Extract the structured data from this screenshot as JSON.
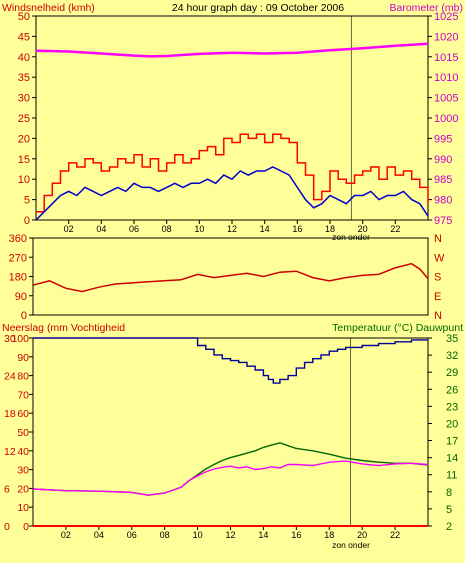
{
  "colors": {
    "background": "#ffff99",
    "frame": "#000000",
    "wind_gust": "#ff0000",
    "wind_avg": "#0000cc",
    "barometer": "#ff00ff",
    "wind_direction": "#cc0000",
    "rain": "#ff0000",
    "humidity": "#000099",
    "temperature": "#006600",
    "dewpoint": "#ff00ff",
    "label_red": "#cc0000",
    "label_magenta": "#cc00cc",
    "label_green": "#006600"
  },
  "chart_data": [
    {
      "type": "line",
      "title": "24 hour graph day : 09 October 2006",
      "ylabel_left": "Windsnelheid (kmh)",
      "ylabel_right": "Barometer (mb)",
      "x_ticks": [
        "02",
        "04",
        "06",
        "08",
        "10",
        "12",
        "14",
        "16",
        "18",
        "20",
        "22"
      ],
      "x_annotation": "zon onder",
      "left_axis": {
        "range": [
          0,
          50
        ],
        "ticks": [
          "0",
          "5",
          "10",
          "15",
          "20",
          "25",
          "30",
          "35",
          "40",
          "45",
          "50"
        ]
      },
      "right_axis": {
        "range": [
          975,
          1025
        ],
        "ticks": [
          "975",
          "980",
          "985",
          "990",
          "995",
          "1000",
          "1005",
          "1010",
          "1015",
          "1020",
          "1025"
        ]
      },
      "series": [
        {
          "key": "gust",
          "axis": "left",
          "style": "step",
          "x": [
            0,
            0.5,
            1,
            1.5,
            2,
            2.5,
            3,
            3.5,
            4,
            4.5,
            5,
            5.5,
            6,
            6.5,
            7,
            7.5,
            8,
            8.5,
            9,
            9.5,
            10,
            10.5,
            11,
            11.5,
            12,
            12.5,
            13,
            13.5,
            14,
            14.5,
            15,
            15.5,
            16,
            16.5,
            17,
            17.5,
            18,
            18.5,
            19,
            19.5,
            20,
            20.5,
            21,
            21.5,
            22,
            22.5,
            23,
            23.5,
            24
          ],
          "y": [
            2,
            6,
            9,
            12,
            14,
            13,
            15,
            14,
            12,
            13,
            15,
            14,
            16,
            13,
            15,
            12,
            14,
            16,
            14,
            15,
            17,
            18,
            16,
            20,
            19,
            21,
            20,
            21,
            19,
            21,
            20,
            19,
            14,
            11,
            5,
            7,
            12,
            10,
            9,
            11,
            12,
            13,
            10,
            13,
            11,
            12,
            10,
            8,
            4
          ]
        },
        {
          "key": "avg",
          "axis": "left",
          "style": "line",
          "x": [
            0,
            0.5,
            1,
            1.5,
            2,
            2.5,
            3,
            3.5,
            4,
            4.5,
            5,
            5.5,
            6,
            6.5,
            7,
            7.5,
            8,
            8.5,
            9,
            9.5,
            10,
            10.5,
            11,
            11.5,
            12,
            12.5,
            13,
            13.5,
            14,
            14.5,
            15,
            15.5,
            16,
            16.5,
            17,
            17.5,
            18,
            18.5,
            19,
            19.5,
            20,
            20.5,
            21,
            21.5,
            22,
            22.5,
            23,
            23.5,
            24
          ],
          "y": [
            0,
            2,
            4,
            6,
            7,
            6,
            8,
            7,
            6,
            7,
            8,
            7,
            9,
            8,
            8,
            7,
            8,
            9,
            8,
            9,
            9,
            10,
            9,
            11,
            10,
            12,
            11,
            12,
            12,
            13,
            12,
            11,
            8,
            5,
            3,
            4,
            6,
            5,
            4,
            6,
            6,
            7,
            5,
            6,
            6,
            7,
            5,
            4,
            1
          ]
        },
        {
          "key": "barometer",
          "axis": "right",
          "style": "line",
          "x": [
            0,
            2,
            4,
            6,
            7,
            8,
            10,
            12,
            14,
            16,
            18,
            20,
            22,
            24
          ],
          "y": [
            1016.5,
            1016.3,
            1015.8,
            1015.3,
            1015.1,
            1015.2,
            1015.7,
            1016,
            1015.8,
            1016,
            1016.6,
            1017.1,
            1017.7,
            1018.2
          ]
        }
      ]
    },
    {
      "type": "line",
      "title": "",
      "ylabel_left": "",
      "ylabel_right": "",
      "x_ticks": [],
      "left_axis": {
        "range": [
          0,
          360
        ],
        "ticks": [
          "0",
          "90",
          "180",
          "270",
          "360"
        ]
      },
      "right_axis": {
        "range": [
          0,
          360
        ],
        "ticks": [
          "N",
          "E",
          "S",
          "W",
          "N"
        ]
      },
      "series": [
        {
          "key": "direction",
          "axis": "left",
          "style": "line",
          "x": [
            0,
            1,
            2,
            3,
            4,
            5,
            6,
            7,
            8,
            9,
            10,
            11,
            12,
            13,
            14,
            15,
            16,
            17,
            18,
            19,
            20,
            21,
            22,
            23,
            23.5,
            24
          ],
          "y": [
            140,
            160,
            125,
            110,
            130,
            145,
            150,
            155,
            160,
            165,
            190,
            175,
            185,
            195,
            180,
            200,
            205,
            175,
            160,
            175,
            185,
            190,
            220,
            240,
            215,
            170
          ]
        }
      ]
    },
    {
      "type": "line",
      "title": "",
      "ylabel_left": "Neerslag (mm Vochtigheid",
      "ylabel_right": "Temperatuur (°C) Dauwpunt",
      "x_ticks": [
        "02",
        "04",
        "06",
        "08",
        "10",
        "12",
        "14",
        "16",
        "18",
        "20",
        "22"
      ],
      "x_annotation": "zon onder",
      "left_axis": {
        "range": [
          0,
          100
        ],
        "ticks": [
          "0",
          "6",
          "12",
          "18",
          "24",
          "30"
        ],
        "humidity_ticks": [
          "0",
          "10",
          "20",
          "30",
          "40",
          "50",
          "60",
          "70",
          "80",
          "90",
          "100"
        ]
      },
      "right_axis": {
        "range": [
          2,
          35
        ],
        "ticks": [
          "2",
          "5",
          "8",
          "11",
          "14",
          "17",
          "20",
          "23",
          "26",
          "29",
          "32",
          "35"
        ]
      },
      "series": [
        {
          "key": "humidity",
          "axis": "left",
          "style": "step",
          "x": [
            0,
            9.5,
            10,
            10.5,
            11,
            11.5,
            12,
            12.5,
            13,
            13.5,
            14,
            14.3,
            14.6,
            15,
            15.5,
            16,
            16.5,
            17,
            17.5,
            18,
            18.5,
            19,
            19.5,
            20,
            20.5,
            21,
            21.5,
            22,
            22.5,
            23,
            23.5,
            24
          ],
          "y": [
            100,
            100,
            96,
            94,
            91,
            89,
            88,
            87,
            85,
            83,
            80,
            78,
            76,
            78,
            80,
            84,
            87,
            89,
            91,
            93,
            94,
            95,
            95,
            96,
            96,
            97,
            97,
            98,
            98,
            99,
            99,
            99
          ]
        },
        {
          "key": "temperature",
          "axis": "right",
          "style": "line",
          "x": [
            0,
            2,
            4,
            6,
            7,
            8,
            9,
            9.5,
            10,
            10.5,
            11,
            11.5,
            12,
            12.5,
            13,
            13.5,
            14,
            14.5,
            15,
            15.5,
            16,
            17,
            18,
            19,
            20,
            21,
            22,
            23,
            24
          ],
          "y": [
            8.5,
            8.2,
            8.1,
            7.9,
            7.4,
            7.8,
            8.8,
            10,
            11,
            12,
            12.8,
            13.5,
            14,
            14.4,
            14.8,
            15.2,
            15.8,
            16.2,
            16.6,
            16.1,
            15.6,
            15.2,
            14.6,
            13.9,
            13.5,
            13.2,
            13,
            13,
            12.7
          ]
        },
        {
          "key": "dewpoint",
          "axis": "right",
          "style": "line",
          "x": [
            0,
            2,
            4,
            6,
            7,
            8,
            9,
            9.5,
            10,
            10.5,
            11,
            11.5,
            12,
            12.5,
            13,
            13.5,
            14,
            14.5,
            15,
            15.5,
            16,
            17,
            18,
            19,
            20,
            21,
            22,
            23,
            24
          ],
          "y": [
            8.5,
            8.2,
            8.1,
            7.9,
            7.4,
            7.8,
            8.8,
            10,
            10.8,
            11.5,
            12,
            12.3,
            12.5,
            12.2,
            12.4,
            11.9,
            12.1,
            12.4,
            12.2,
            12.8,
            12.8,
            12.6,
            13.2,
            13.4,
            12.9,
            12.6,
            12.9,
            13,
            12.8
          ]
        },
        {
          "key": "rain",
          "axis": "left",
          "style": "line",
          "x": [
            0,
            24
          ],
          "y": [
            0,
            0
          ]
        }
      ]
    }
  ]
}
